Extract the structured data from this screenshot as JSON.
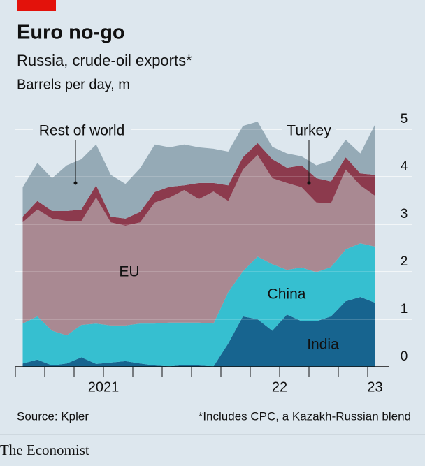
{
  "chart_data": {
    "type": "stacked_area",
    "title": "Euro no-go",
    "subtitle": "Russia, crude-oil exports*",
    "unit_label": "Barrels per day, m",
    "source": "Source: Kpler",
    "footnote": "*Includes CPC, a Kazakh-Russian blend",
    "brand": "The Economist",
    "categories": [
      null,
      null,
      null,
      null,
      null,
      null,
      null,
      null,
      null,
      null,
      null,
      null,
      null,
      null,
      null,
      null,
      null,
      null,
      null,
      null,
      null,
      null,
      null,
      null,
      null
    ],
    "xtick_labels": [
      {
        "value": 5.5,
        "label": "2021"
      },
      {
        "value": 17.5,
        "label": "22"
      },
      {
        "value": 24,
        "label": "23"
      }
    ],
    "ylim": [
      0,
      5
    ],
    "yticks": [
      0,
      1,
      2,
      3,
      4,
      5
    ],
    "grid": true,
    "series": [
      {
        "name": "India",
        "color": "#17648f",
        "values": [
          0.07,
          0.15,
          0.03,
          0.07,
          0.2,
          0.06,
          0.09,
          0.12,
          0.07,
          0.03,
          0.01,
          0.04,
          0.03,
          0.01,
          0.49,
          1.06,
          1.0,
          0.76,
          1.1,
          0.96,
          0.96,
          1.06,
          1.38,
          1.47,
          1.35
        ]
      },
      {
        "name": "China",
        "color": "#36bfd0",
        "values": [
          0.84,
          0.91,
          0.73,
          0.59,
          0.68,
          0.85,
          0.78,
          0.75,
          0.84,
          0.88,
          0.92,
          0.89,
          0.9,
          0.9,
          1.08,
          0.95,
          1.32,
          1.4,
          0.94,
          1.13,
          1.03,
          1.04,
          1.09,
          1.13,
          1.18
        ]
      },
      {
        "name": "EU",
        "color": "#a98992",
        "values": [
          2.13,
          2.25,
          2.36,
          2.41,
          2.19,
          2.65,
          2.17,
          2.1,
          2.13,
          2.55,
          2.63,
          2.79,
          2.6,
          2.78,
          1.92,
          2.14,
          2.14,
          1.81,
          1.83,
          1.69,
          1.47,
          1.34,
          1.68,
          1.22,
          1.07
        ]
      },
      {
        "name": "Turkey",
        "color": "#8c3a4d",
        "values": [
          0.12,
          0.18,
          0.16,
          0.21,
          0.24,
          0.26,
          0.12,
          0.15,
          0.22,
          0.22,
          0.23,
          0.1,
          0.34,
          0.18,
          0.33,
          0.26,
          0.25,
          0.4,
          0.32,
          0.46,
          0.51,
          0.46,
          0.26,
          0.25,
          0.44
        ]
      },
      {
        "name": "Rest of world",
        "color": "#95aab6",
        "values": [
          0.62,
          0.8,
          0.69,
          0.96,
          1.06,
          0.86,
          0.88,
          0.73,
          0.92,
          1.0,
          0.83,
          0.86,
          0.75,
          0.72,
          0.71,
          0.66,
          0.45,
          0.26,
          0.3,
          0.19,
          0.27,
          0.44,
          0.37,
          0.42,
          1.06
        ]
      }
    ]
  }
}
